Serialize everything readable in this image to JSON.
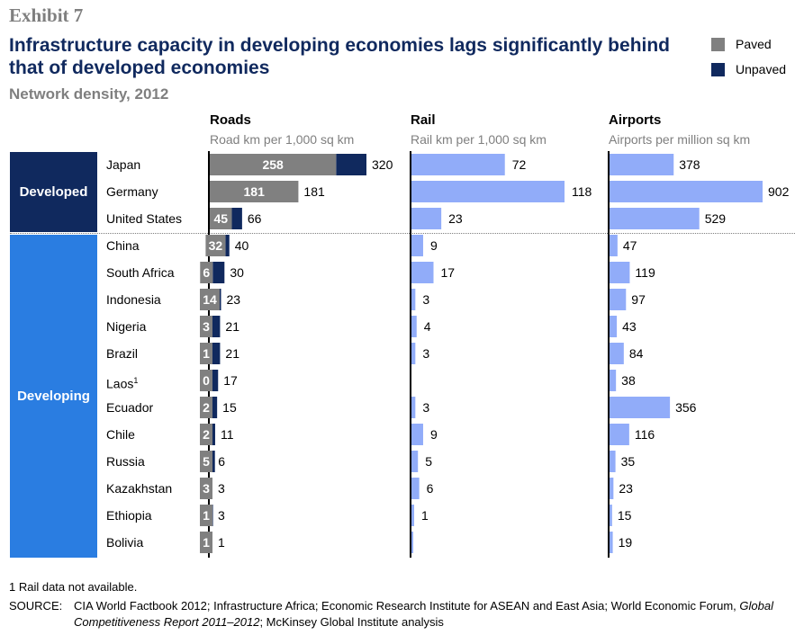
{
  "exhibit": "Exhibit 7",
  "title": "Infrastructure capacity in developing economies lags significantly behind that of developed economies",
  "subtitle": "Network density, 2012",
  "legend": [
    {
      "label": "Paved",
      "color": "#808080"
    },
    {
      "label": "Unpaved",
      "color": "#10295e"
    }
  ],
  "colors": {
    "paved": "#808080",
    "unpaved": "#10295e",
    "rail": "#91acf9",
    "airports": "#91acf9",
    "developed": "#10295e",
    "developing": "#2a7de1"
  },
  "groups": [
    {
      "label": "Developed"
    },
    {
      "label": "Developing"
    }
  ],
  "countries": [
    {
      "name": "Japan",
      "note": ""
    },
    {
      "name": "Germany",
      "note": ""
    },
    {
      "name": "United States",
      "note": ""
    },
    {
      "name": "China",
      "note": ""
    },
    {
      "name": "South Africa",
      "note": ""
    },
    {
      "name": "Indonesia",
      "note": ""
    },
    {
      "name": "Nigeria",
      "note": ""
    },
    {
      "name": "Brazil",
      "note": ""
    },
    {
      "name": "Laos",
      "note": "1"
    },
    {
      "name": "Ecuador",
      "note": ""
    },
    {
      "name": "Chile",
      "note": ""
    },
    {
      "name": "Russia",
      "note": ""
    },
    {
      "name": "Kazakhstan",
      "note": ""
    },
    {
      "name": "Ethiopia",
      "note": ""
    },
    {
      "name": "Bolivia",
      "note": ""
    }
  ],
  "chart_data": [
    {
      "type": "bar",
      "title": "Roads",
      "unit": "Road km per 1,000 sq km",
      "categories": [
        "Japan",
        "Germany",
        "United States",
        "China",
        "South Africa",
        "Indonesia",
        "Nigeria",
        "Brazil",
        "Laos",
        "Ecuador",
        "Chile",
        "Russia",
        "Kazakhstan",
        "Ethiopia",
        "Bolivia"
      ],
      "paved": [
        258,
        181,
        45,
        32,
        6,
        14,
        3,
        1,
        0,
        2,
        2,
        5,
        3,
        1,
        1
      ],
      "total": [
        320,
        181,
        66,
        40,
        30,
        23,
        21,
        21,
        17,
        15,
        11,
        6,
        3,
        3,
        1
      ],
      "series": [
        {
          "name": "Paved",
          "values": [
            258,
            181,
            45,
            32,
            6,
            14,
            3,
            1,
            0,
            2,
            2,
            5,
            3,
            1,
            1
          ]
        },
        {
          "name": "Unpaved",
          "values": [
            62,
            0,
            21,
            8,
            24,
            9,
            18,
            20,
            17,
            13,
            9,
            1,
            0,
            2,
            0
          ]
        }
      ]
    },
    {
      "type": "bar",
      "title": "Rail",
      "unit": "Rail km per 1,000 sq km",
      "categories": [
        "Japan",
        "Germany",
        "United States",
        "China",
        "South Africa",
        "Indonesia",
        "Nigeria",
        "Brazil",
        "Laos",
        "Ecuador",
        "Chile",
        "Russia",
        "Kazakhstan",
        "Ethiopia",
        "Bolivia"
      ],
      "values": [
        72,
        118,
        23,
        9,
        17,
        3,
        4,
        3,
        null,
        3,
        9,
        5,
        6,
        1,
        null
      ]
    },
    {
      "type": "bar",
      "title": "Airports",
      "unit": "Airports per million sq km",
      "categories": [
        "Japan",
        "Germany",
        "United States",
        "China",
        "South Africa",
        "Indonesia",
        "Nigeria",
        "Brazil",
        "Laos",
        "Ecuador",
        "Chile",
        "Russia",
        "Kazakhstan",
        "Ethiopia",
        "Bolivia"
      ],
      "values": [
        378,
        902,
        529,
        47,
        119,
        97,
        43,
        84,
        38,
        356,
        116,
        35,
        23,
        15,
        19
      ]
    }
  ],
  "footnote": "1  Rail data not available.",
  "source_label": "SOURCE:",
  "source_text_before": "CIA World Factbook 2012; Infrastructure Africa; Economic Research Institute for ASEAN and East Asia; World Economic Forum, ",
  "source_text_italic": "Global Competitiveness Report 2011–2012",
  "source_text_after": "; McKinsey Global Institute analysis"
}
